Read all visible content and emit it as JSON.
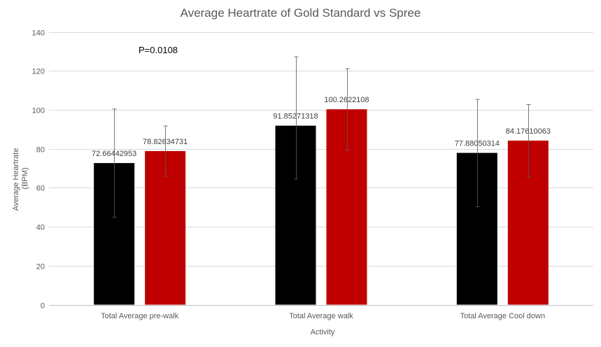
{
  "chart_data": {
    "type": "bar",
    "title": "Average Heartrate of Gold Standard vs Spree",
    "xlabel": "Activity",
    "ylabel_lines": [
      "Average Heartrate",
      "(BPM)"
    ],
    "ylim": [
      0,
      140
    ],
    "yticks": [
      0,
      20,
      40,
      60,
      80,
      100,
      120,
      140
    ],
    "grid": true,
    "categories": [
      "Total Average pre-walk",
      "Total Average walk",
      "Total Average Cool down"
    ],
    "series": [
      {
        "color": "#000000",
        "values": [
          72.66442953,
          91.85271318,
          77.88050314
        ],
        "labels": [
          "72.66442953",
          "91.85271318",
          "77.88050314"
        ],
        "error_low": [
          44.8,
          64.5,
          50.2
        ],
        "error_high": [
          100.4,
          127.2,
          105.3
        ]
      },
      {
        "color": "#c00000",
        "values": [
          78.82634731,
          100.2622108,
          84.17610063
        ],
        "labels": [
          "78.82634731",
          "100.2622108",
          "84.17610063"
        ],
        "error_low": [
          65.9,
          79.3,
          65.6
        ],
        "error_high": [
          91.7,
          121.1,
          102.7
        ]
      }
    ],
    "annotations": [
      "P=0.0108"
    ]
  }
}
